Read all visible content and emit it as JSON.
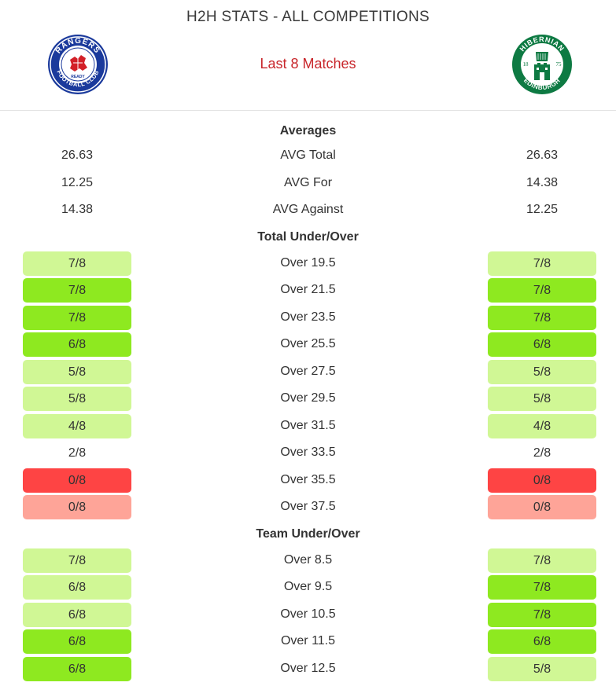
{
  "header": {
    "title": "H2H STATS - ALL COMPETITIONS",
    "subtitle": "Last 8 Matches",
    "home_logo": {
      "icon": "rangers-crest-icon",
      "ring_text": "RANGERS",
      "inner_text": "FOOTBALL CLUB",
      "motto": "READY"
    },
    "away_logo": {
      "icon": "hibernian-crest-icon",
      "ring_text": "HIBERNIAN",
      "lower_text": "EDINBURGH",
      "year_left": "18",
      "year_right": "75"
    }
  },
  "colors": {
    "light": "#d0f795",
    "green": "#8ee920",
    "red": "#fe4444",
    "pink": "#fea498",
    "subtitle": "#c8262b"
  },
  "averages": {
    "title": "Averages",
    "rows": [
      {
        "label": "AVG Total",
        "home": "26.63",
        "away": "26.63"
      },
      {
        "label": "AVG For",
        "home": "12.25",
        "away": "14.38"
      },
      {
        "label": "AVG Against",
        "home": "14.38",
        "away": "12.25"
      }
    ]
  },
  "total_under_over": {
    "title": "Total Under/Over",
    "rows": [
      {
        "label": "Over 19.5",
        "home": "7/8",
        "home_color": "light",
        "away": "7/8",
        "away_color": "light"
      },
      {
        "label": "Over 21.5",
        "home": "7/8",
        "home_color": "green",
        "away": "7/8",
        "away_color": "green"
      },
      {
        "label": "Over 23.5",
        "home": "7/8",
        "home_color": "green",
        "away": "7/8",
        "away_color": "green"
      },
      {
        "label": "Over 25.5",
        "home": "6/8",
        "home_color": "green",
        "away": "6/8",
        "away_color": "green"
      },
      {
        "label": "Over 27.5",
        "home": "5/8",
        "home_color": "light",
        "away": "5/8",
        "away_color": "light"
      },
      {
        "label": "Over 29.5",
        "home": "5/8",
        "home_color": "light",
        "away": "5/8",
        "away_color": "light"
      },
      {
        "label": "Over 31.5",
        "home": "4/8",
        "home_color": "light",
        "away": "4/8",
        "away_color": "light"
      },
      {
        "label": "Over 33.5",
        "home": "2/8",
        "home_color": "none",
        "away": "2/8",
        "away_color": "none"
      },
      {
        "label": "Over 35.5",
        "home": "0/8",
        "home_color": "red",
        "away": "0/8",
        "away_color": "red"
      },
      {
        "label": "Over 37.5",
        "home": "0/8",
        "home_color": "pink",
        "away": "0/8",
        "away_color": "pink"
      }
    ]
  },
  "team_under_over": {
    "title": "Team Under/Over",
    "rows": [
      {
        "label": "Over 8.5",
        "home": "7/8",
        "home_color": "light",
        "away": "7/8",
        "away_color": "light"
      },
      {
        "label": "Over 9.5",
        "home": "6/8",
        "home_color": "light",
        "away": "7/8",
        "away_color": "green"
      },
      {
        "label": "Over 10.5",
        "home": "6/8",
        "home_color": "light",
        "away": "7/8",
        "away_color": "green"
      },
      {
        "label": "Over 11.5",
        "home": "6/8",
        "home_color": "green",
        "away": "6/8",
        "away_color": "green"
      },
      {
        "label": "Over 12.5",
        "home": "6/8",
        "home_color": "green",
        "away": "5/8",
        "away_color": "light"
      }
    ]
  }
}
